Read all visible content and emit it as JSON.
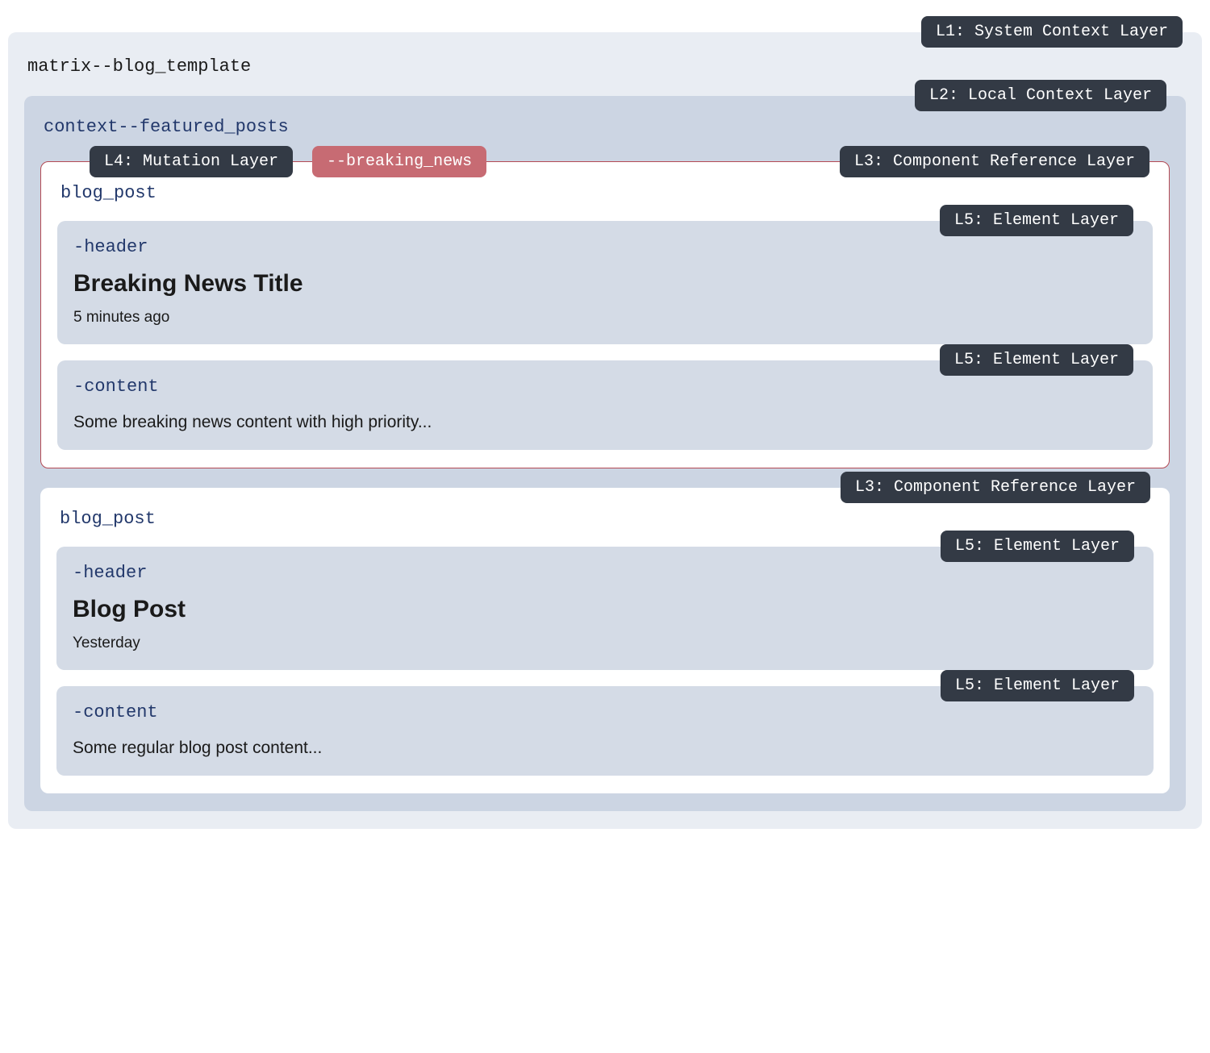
{
  "colors": {
    "page_bg": "#ffffff",
    "l1_bg": "#e9edf3",
    "l2_bg": "#ccd5e3",
    "l3_bg": "#ffffff",
    "l5_bg": "#d4dbe6",
    "badge_bg": "#333a45",
    "badge_text": "#ffffff",
    "mutation_chip_bg": "#c76b73",
    "mutation_border": "#b44a54",
    "mono_label_dark": "#22386b",
    "text_color": "#1a1a1a"
  },
  "fonts": {
    "mono": "SFMono-Regular, Consolas, Liberation Mono, Menlo, monospace",
    "sans": "-apple-system, BlinkMacSystemFont, Segoe UI, Helvetica Neue, Arial, sans-serif",
    "badge_fontsize": 20,
    "layer_label_fontsize": 22,
    "title_fontsize": 30,
    "meta_fontsize": 19,
    "content_fontsize": 21
  },
  "layout": {
    "border_radius": 10,
    "badge_radius": 8
  },
  "l1": {
    "badge": "L1: System Context Layer",
    "label": "matrix--blog_template"
  },
  "l2": {
    "badge": "L2: Local Context Layer",
    "label": "context--featured_posts"
  },
  "l4": {
    "badge": "L4: Mutation Layer",
    "chip": "--breaking_news"
  },
  "posts": [
    {
      "mutated": true,
      "l3_badge": "L3: Component Reference Layer",
      "l3_label": "blog_post",
      "header": {
        "l5_badge": "L5: Element Layer",
        "l5_label": "-header",
        "title": "Breaking News Title",
        "meta": "5 minutes ago"
      },
      "content": {
        "l5_badge": "L5: Element Layer",
        "l5_label": "-content",
        "text": "Some breaking news content with high priority..."
      }
    },
    {
      "mutated": false,
      "l3_badge": "L3: Component Reference Layer",
      "l3_label": "blog_post",
      "header": {
        "l5_badge": "L5: Element Layer",
        "l5_label": "-header",
        "title": "Blog Post",
        "meta": "Yesterday"
      },
      "content": {
        "l5_badge": "L5: Element Layer",
        "l5_label": "-content",
        "text": "Some regular blog post content..."
      }
    }
  ]
}
